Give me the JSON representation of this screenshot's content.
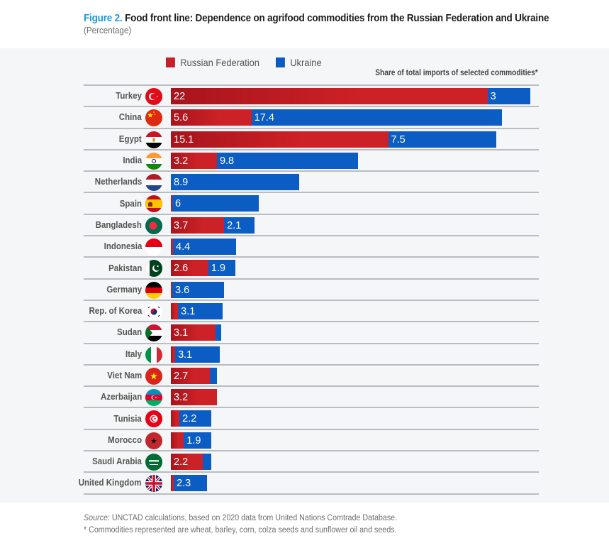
{
  "header": {
    "figure_label": "Figure 2.",
    "title": "Food front line: Dependence on agrifood commodities from the Russian Federation and Ukraine",
    "subtitle": "(Percentage)"
  },
  "legend": {
    "items": [
      {
        "label": "Russian Federation",
        "color": "#c8202a"
      },
      {
        "label": "Ukraine",
        "color": "#0a5ac2"
      }
    ],
    "note": "Share of total imports of selected commodities*"
  },
  "footer": {
    "source_label": "Source:",
    "source_text": " UNCTAD calculations, based on 2020 data from United Nations Comtrade Database.",
    "note": "* Commodities represented are wheat, barley, corn, colza seeds and sunflower oil and seeds."
  },
  "colors": {
    "russia": "#c8202a",
    "ukraine": "#0a5ac2",
    "accent": "#1a9bd7"
  },
  "chart_data": {
    "type": "bar",
    "orientation": "horizontal",
    "stacked": true,
    "title": "Food front line: Dependence on agrifood commodities from the Russian Federation and Ukraine",
    "subtitle": "(Percentage)",
    "xlabel": "Share of total imports of selected commodities*",
    "ylabel": "",
    "xlim": [
      0,
      25
    ],
    "grid": false,
    "legend_position": "top-left",
    "categories": [
      "Turkey",
      "China",
      "Egypt",
      "India",
      "Netherlands",
      "Spain",
      "Bangladesh",
      "Indonesia",
      "Pakistan",
      "Germany",
      "Rep. of Korea",
      "Sudan",
      "Italy",
      "Viet Nam",
      "Azerbaijan",
      "Tunisia",
      "Morocco",
      "Saudi Arabia",
      "United Kingdom"
    ],
    "flags": [
      "turkey-flag-icon",
      "china-flag-icon",
      "egypt-flag-icon",
      "india-flag-icon",
      "netherlands-flag-icon",
      "spain-flag-icon",
      "bangladesh-flag-icon",
      "indonesia-flag-icon",
      "pakistan-flag-icon",
      "germany-flag-icon",
      "korea-flag-icon",
      "sudan-flag-icon",
      "italy-flag-icon",
      "vietnam-flag-icon",
      "azerbaijan-flag-icon",
      "tunisia-flag-icon",
      "morocco-flag-icon",
      "saudi-arabia-flag-icon",
      "uk-flag-icon"
    ],
    "series": [
      {
        "name": "Russian Federation",
        "values": [
          22,
          5.6,
          15.1,
          3.2,
          0,
          0.1,
          3.7,
          0.15,
          2.6,
          0.1,
          0.5,
          3.1,
          0.3,
          2.7,
          3.2,
          0.6,
          0.9,
          2.2,
          0.2
        ],
        "labels": [
          "22",
          "5.6",
          "15.1",
          "3.2",
          "",
          "",
          "3.7",
          "",
          "2.6",
          "",
          "",
          "3.1",
          "",
          "2.7",
          "3.2",
          "",
          "",
          "2.2",
          ""
        ]
      },
      {
        "name": "Ukraine",
        "values": [
          3,
          17.4,
          7.5,
          9.8,
          8.9,
          6,
          2.1,
          4.4,
          1.9,
          3.6,
          3.1,
          0.4,
          3.1,
          0.5,
          0,
          2.2,
          1.9,
          0.6,
          2.3
        ],
        "labels": [
          "3",
          "17.4",
          "7.5",
          "9.8",
          "8.9",
          "6",
          "2.1",
          "4.4",
          "1.9",
          "3.6",
          "3.1",
          "",
          "3.1",
          "",
          "",
          "2.2",
          "1.9",
          "",
          "2.3"
        ]
      }
    ]
  }
}
